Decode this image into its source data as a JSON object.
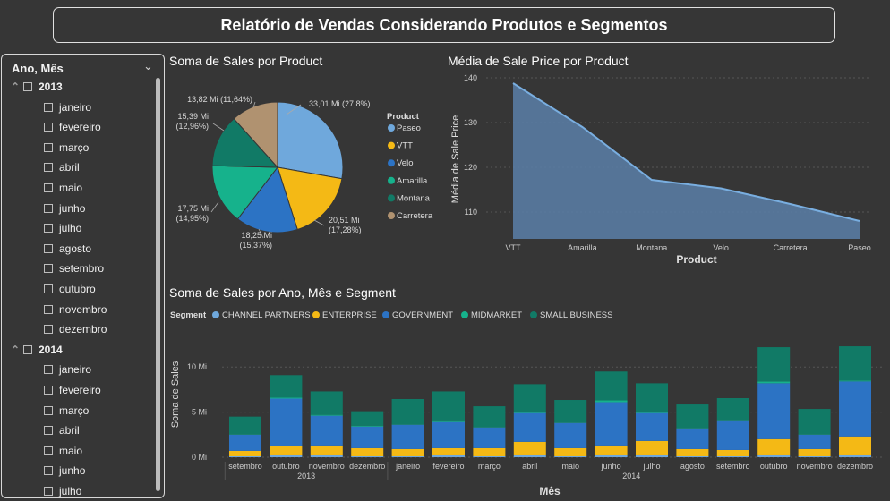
{
  "report_title": "Relatório de Vendas Considerando Produtos e Segmentos",
  "slicer": {
    "header": "Ano, Mês",
    "chevron_icon": "chevron-down-icon",
    "groups": [
      {
        "year": "2013",
        "months": [
          "janeiro",
          "fevereiro",
          "março",
          "abril",
          "maio",
          "junho",
          "julho",
          "agosto",
          "setembro",
          "outubro",
          "novembro",
          "dezembro"
        ]
      },
      {
        "year": "2014",
        "months": [
          "janeiro",
          "fevereiro",
          "março",
          "abril",
          "maio",
          "junho",
          "julho"
        ]
      }
    ]
  },
  "colors": {
    "Paseo": "#6fa8dc",
    "VTT": "#f4b915",
    "Velo": "#2c73c4",
    "Amarilla": "#16b28c",
    "Montana": "#117a66",
    "Carretera": "#b09270",
    "CHANNEL PARTNERS": "#6fa8dc",
    "ENTERPRISE": "#f4b915",
    "GOVERNMENT": "#2c73c4",
    "MIDMARKET": "#16b28c",
    "SMALL BUSINESS": "#117a66",
    "area": "#5a7fa8",
    "line": "#79aee0"
  },
  "chart_data": [
    {
      "type": "pie",
      "title": "Soma de Sales por Product",
      "legend_title": "Product",
      "legend_position": "right",
      "slices": [
        {
          "label": "Paseo",
          "value": 33.01,
          "display": "33,01 Mi (27,8%)"
        },
        {
          "label": "VTT",
          "value": 20.51,
          "display": "20,51 Mi (17,28%)"
        },
        {
          "label": "Velo",
          "value": 18.25,
          "display": "18,25 Mi (15,37%)"
        },
        {
          "label": "Amarilla",
          "value": 17.75,
          "display": "17,75 Mi (14,95%)"
        },
        {
          "label": "Montana",
          "value": 15.39,
          "display": "15,39 Mi (12,96%)"
        },
        {
          "label": "Carretera",
          "value": 13.82,
          "display": "13,82 Mi (11,64%)"
        }
      ]
    },
    {
      "type": "area",
      "title": "Média de Sale Price por Product",
      "xlabel": "Product",
      "ylabel": "Média de Sale Price",
      "categories": [
        "VTT",
        "Amarilla",
        "Montana",
        "Velo",
        "Carretera",
        "Paseo"
      ],
      "values": [
        138.8,
        129.0,
        117.2,
        115.3,
        111.8,
        108.0
      ],
      "ylim": [
        104,
        141
      ],
      "yticks": [
        110,
        120,
        130,
        140
      ],
      "grid": true
    },
    {
      "type": "bar",
      "stacked": true,
      "title": "Soma de Sales por Ano, Mês e Segment",
      "xlabel": "Mês",
      "ylabel": "Soma de Sales",
      "legend_title": "Segment",
      "legend_position": "top-left",
      "ylim": [
        0,
        13
      ],
      "yticks": [
        {
          "v": 0,
          "label": "0 Mi"
        },
        {
          "v": 5,
          "label": "5 Mi"
        },
        {
          "v": 10,
          "label": "10 Mi"
        }
      ],
      "categories": [
        "setembro",
        "outubro",
        "novembro",
        "dezembro",
        "janeiro",
        "fevereiro",
        "março",
        "abril",
        "maio",
        "junho",
        "julho",
        "agosto",
        "setembro",
        "outubro",
        "novembro",
        "dezembro"
      ],
      "years": [
        {
          "label": "2013",
          "start": 0,
          "end": 3
        },
        {
          "label": "2014",
          "start": 4,
          "end": 15
        }
      ],
      "series": [
        {
          "name": "CHANNEL PARTNERS",
          "values": [
            0.1,
            0.2,
            0.2,
            0.1,
            0.1,
            0.2,
            0.1,
            0.2,
            0.1,
            0.2,
            0.2,
            0.1,
            0.1,
            0.2,
            0.1,
            0.2
          ]
        },
        {
          "name": "ENTERPRISE",
          "values": [
            0.6,
            1.0,
            1.1,
            0.9,
            0.8,
            0.8,
            0.9,
            1.5,
            0.9,
            1.1,
            1.6,
            0.8,
            0.7,
            1.8,
            0.8,
            2.1
          ]
        },
        {
          "name": "GOVERNMENT",
          "values": [
            1.8,
            5.3,
            3.3,
            2.4,
            2.7,
            2.9,
            2.3,
            3.2,
            2.8,
            4.8,
            3.1,
            2.3,
            3.2,
            6.2,
            1.6,
            6.1
          ]
        },
        {
          "name": "MIDMARKET",
          "values": [
            0.05,
            0.1,
            0.1,
            0.1,
            0.05,
            0.1,
            0.05,
            0.1,
            0.05,
            0.2,
            0.1,
            0.05,
            0.05,
            0.2,
            0.05,
            0.1
          ]
        },
        {
          "name": "SMALL BUSINESS",
          "values": [
            1.95,
            2.5,
            2.6,
            1.6,
            2.8,
            3.3,
            2.3,
            3.1,
            2.5,
            3.2,
            3.2,
            2.6,
            2.5,
            3.8,
            2.8,
            3.8
          ]
        }
      ]
    }
  ]
}
